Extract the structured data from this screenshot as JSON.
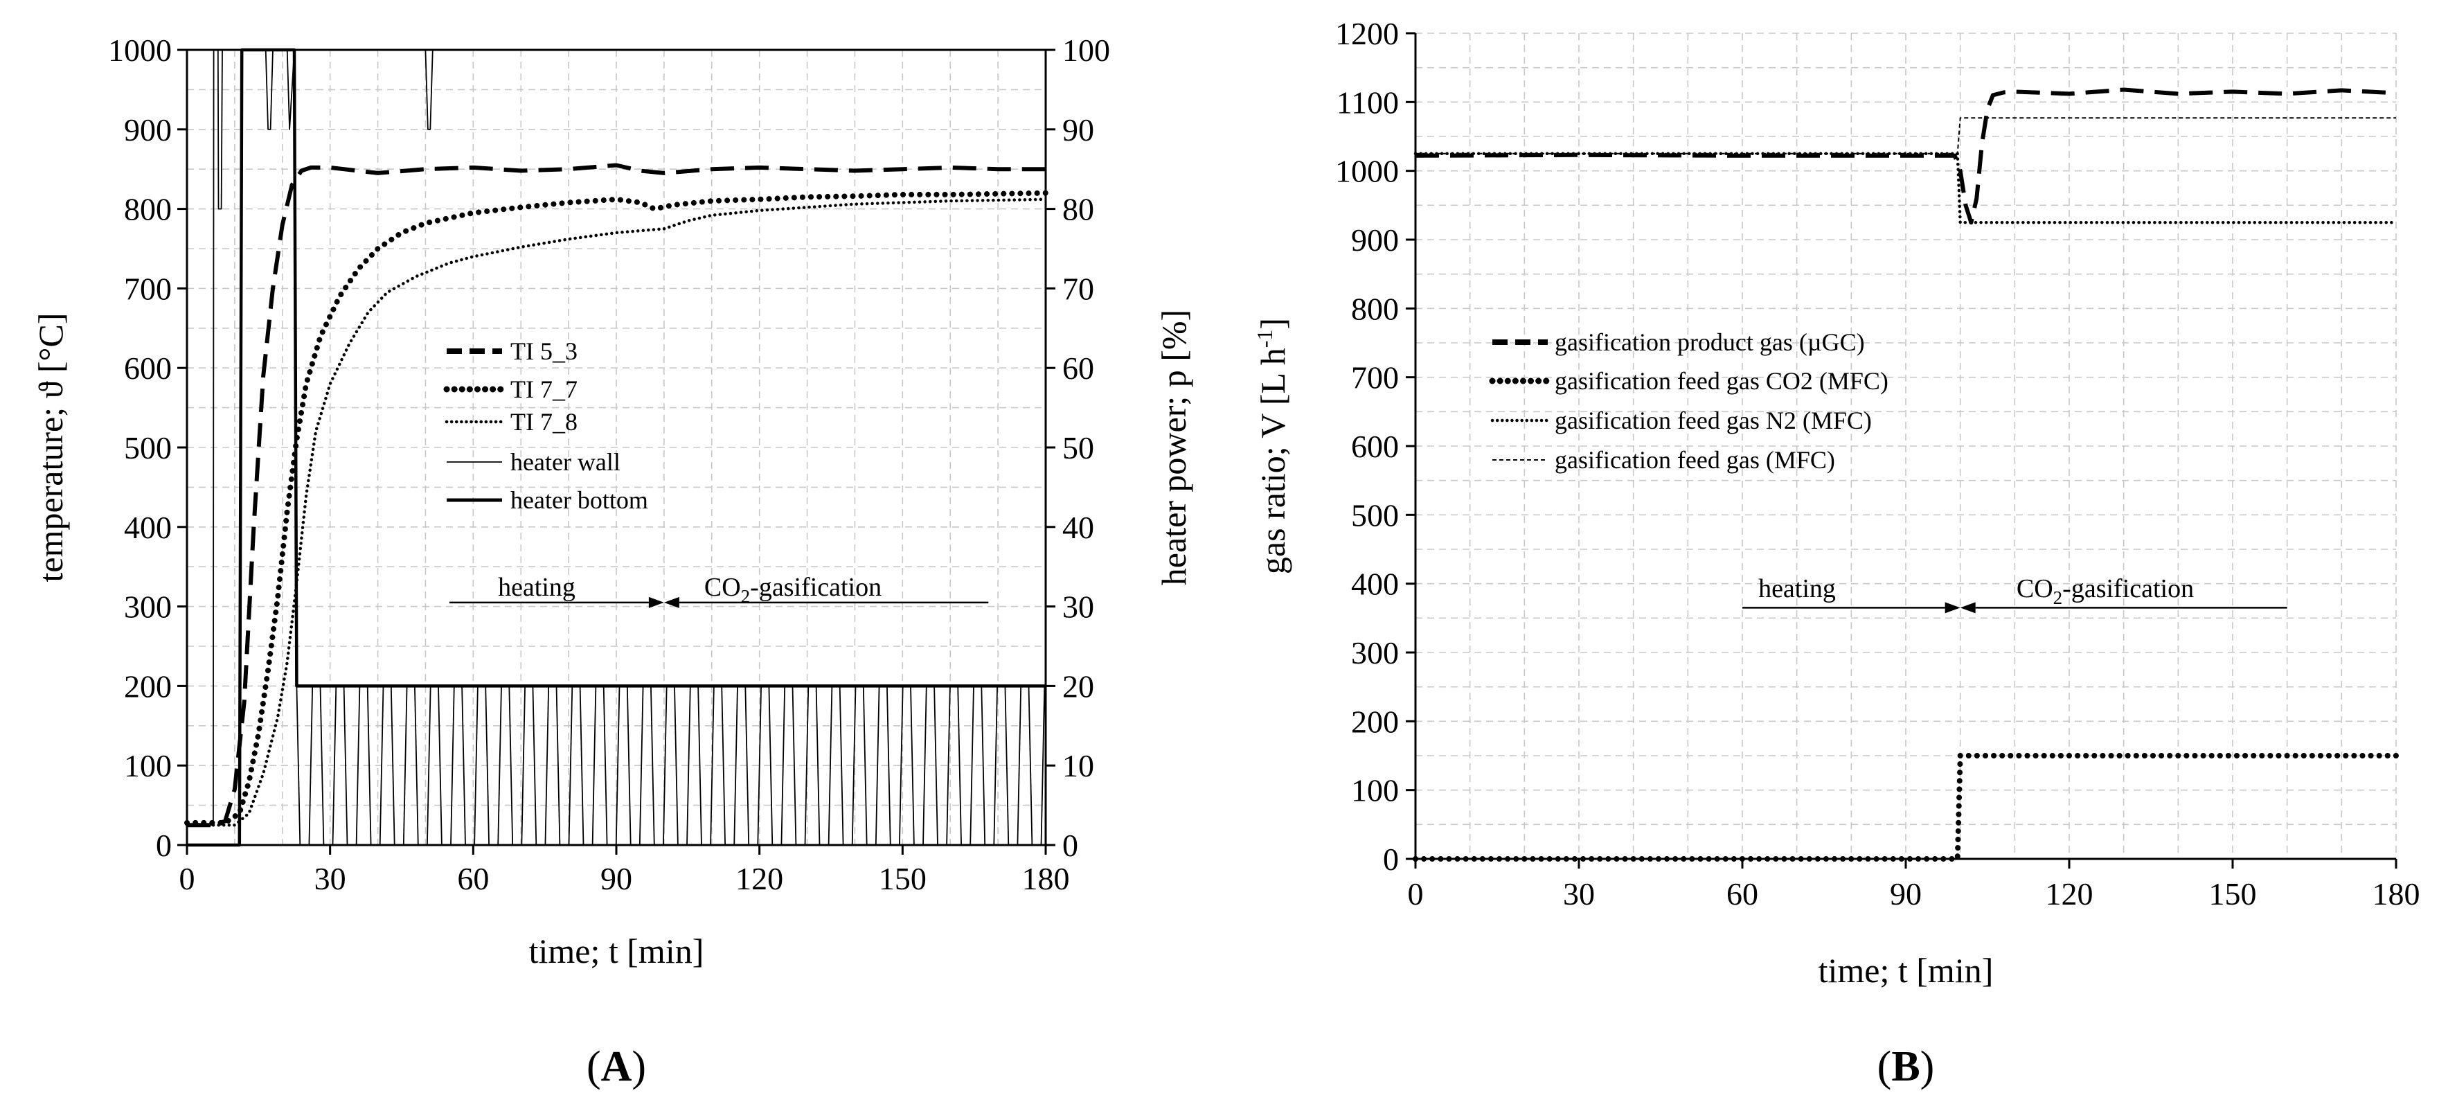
{
  "chart_data": [
    {
      "panel": "A",
      "type": "line",
      "xlabel": "time; t [min]",
      "ylabel_left": "temperature; ϑ [°C]",
      "ylabel_right": "heater power; p [%]",
      "xlim": [
        0,
        180
      ],
      "ylim_left": [
        0,
        1000
      ],
      "ylim_right": [
        0,
        100
      ],
      "x_ticks": [
        0,
        30,
        60,
        90,
        120,
        150,
        180
      ],
      "y_ticks_left": [
        0,
        100,
        200,
        300,
        400,
        500,
        600,
        700,
        800,
        900,
        1000
      ],
      "y_ticks_right": [
        0,
        10,
        20,
        30,
        40,
        50,
        60,
        70,
        80,
        90,
        100
      ],
      "grid": true,
      "legend_position": "center-left",
      "series": [
        {
          "name": "TI 5_3",
          "axis": "left",
          "style": "dashed-bold",
          "x": [
            0,
            5,
            8,
            10,
            12,
            14,
            16,
            18,
            20,
            22,
            24,
            26,
            30,
            40,
            50,
            60,
            70,
            80,
            90,
            95,
            100,
            110,
            120,
            130,
            140,
            150,
            160,
            170,
            180
          ],
          "y": [
            25,
            25,
            30,
            70,
            180,
            400,
            590,
            700,
            780,
            830,
            848,
            852,
            852,
            845,
            850,
            852,
            848,
            850,
            855,
            848,
            845,
            850,
            852,
            850,
            848,
            850,
            852,
            850,
            850
          ]
        },
        {
          "name": "TI 7_7",
          "axis": "left",
          "style": "dotted-bold",
          "x": [
            0,
            8,
            11,
            13,
            15,
            17,
            19,
            21,
            23,
            25,
            28,
            32,
            36,
            40,
            45,
            50,
            60,
            70,
            80,
            90,
            95,
            98,
            102,
            110,
            120,
            130,
            140,
            150,
            160,
            170,
            180
          ],
          "y": [
            28,
            28,
            40,
            80,
            140,
            220,
            310,
            420,
            510,
            580,
            640,
            690,
            725,
            750,
            770,
            782,
            795,
            802,
            808,
            812,
            808,
            800,
            805,
            810,
            812,
            815,
            816,
            818,
            818,
            819,
            820
          ]
        },
        {
          "name": "TI 7_8",
          "axis": "left",
          "style": "dotted-fine",
          "x": [
            0,
            10,
            13,
            16,
            19,
            21,
            23,
            25,
            27,
            30,
            34,
            38,
            42,
            48,
            55,
            60,
            70,
            80,
            90,
            100,
            105,
            110,
            120,
            130,
            140,
            150,
            160,
            170,
            180
          ],
          "y": [
            25,
            25,
            40,
            90,
            160,
            230,
            330,
            440,
            520,
            580,
            630,
            670,
            695,
            715,
            732,
            740,
            752,
            762,
            770,
            775,
            785,
            792,
            798,
            802,
            806,
            808,
            810,
            811,
            812
          ]
        },
        {
          "name": "heater wall",
          "axis": "right",
          "style": "solid-thin",
          "x": [
            0,
            5.5,
            5.6,
            6.5,
            6.6,
            7.2,
            7.4,
            8.0,
            8.2,
            16.5,
            17.0,
            17.5,
            18.0,
            21,
            21.5,
            22.0,
            22.5,
            50,
            50.5,
            51,
            51.5,
            180
          ],
          "y": [
            2.5,
            2.5,
            100,
            100,
            80,
            80,
            100,
            100,
            100,
            100,
            90,
            90,
            100,
            100,
            90,
            95,
            100,
            100,
            90,
            90,
            100,
            100
          ]
        },
        {
          "name": "heater bottom",
          "axis": "right",
          "style": "solid-bold",
          "x": [
            0,
            11,
            11.5,
            22.5,
            23,
            180
          ],
          "y": [
            0,
            0,
            100,
            100,
            20,
            20
          ]
        }
      ],
      "annotations": [
        {
          "text": "heating",
          "arrow_from": 55,
          "arrow_to": 100,
          "y": 305
        },
        {
          "text": "CO",
          "subscript": "2",
          "suffix": "-gasification",
          "arrow_from": 168,
          "arrow_to": 100,
          "y": 305
        }
      ]
    },
    {
      "panel": "B",
      "type": "line",
      "xlabel": "time; t [min]",
      "ylabel": "gas ratio; V [L h",
      "ylabel_superscript": "-1",
      "ylabel_suffix": "]",
      "xlim": [
        0,
        180
      ],
      "ylim": [
        0,
        1200
      ],
      "x_ticks": [
        0,
        30,
        60,
        90,
        120,
        150,
        180
      ],
      "y_ticks": [
        0,
        100,
        200,
        300,
        400,
        500,
        600,
        700,
        800,
        900,
        1000,
        1100,
        1200
      ],
      "grid": true,
      "legend_position": "center-left",
      "series": [
        {
          "name": "gasification product gas (µGC)",
          "style": "dashed-bold",
          "x": [
            0,
            30,
            60,
            90,
            99,
            100,
            101,
            102,
            103,
            104,
            105,
            106,
            108,
            110,
            120,
            130,
            140,
            150,
            160,
            170,
            180
          ],
          "y": [
            1022,
            1023,
            1022,
            1022,
            1022,
            1000,
            950,
            925,
            960,
            1040,
            1090,
            1110,
            1114,
            1115,
            1112,
            1118,
            1112,
            1115,
            1112,
            1117,
            1113
          ]
        },
        {
          "name": "gasification feed gas CO2 (MFC)",
          "style": "dotted-bold",
          "x": [
            0,
            99.5,
            100,
            180
          ],
          "y": [
            0,
            0,
            150,
            150
          ]
        },
        {
          "name": "gasification feed gas N2 (MFC)",
          "style": "dotted-fine",
          "x": [
            0,
            99.5,
            100,
            180
          ],
          "y": [
            1025,
            1025,
            925,
            925
          ]
        },
        {
          "name": "gasification feed gas (MFC)",
          "style": "dashed-fine",
          "x": [
            0,
            99.5,
            100,
            180
          ],
          "y": [
            1025,
            1025,
            1077,
            1077
          ]
        }
      ],
      "annotations": [
        {
          "text": "heating",
          "arrow_from": 60,
          "arrow_to": 100,
          "y": 365
        },
        {
          "text": "CO",
          "subscript": "2",
          "suffix": "-gasification",
          "arrow_from": 160,
          "arrow_to": 100,
          "y": 365
        }
      ]
    }
  ]
}
